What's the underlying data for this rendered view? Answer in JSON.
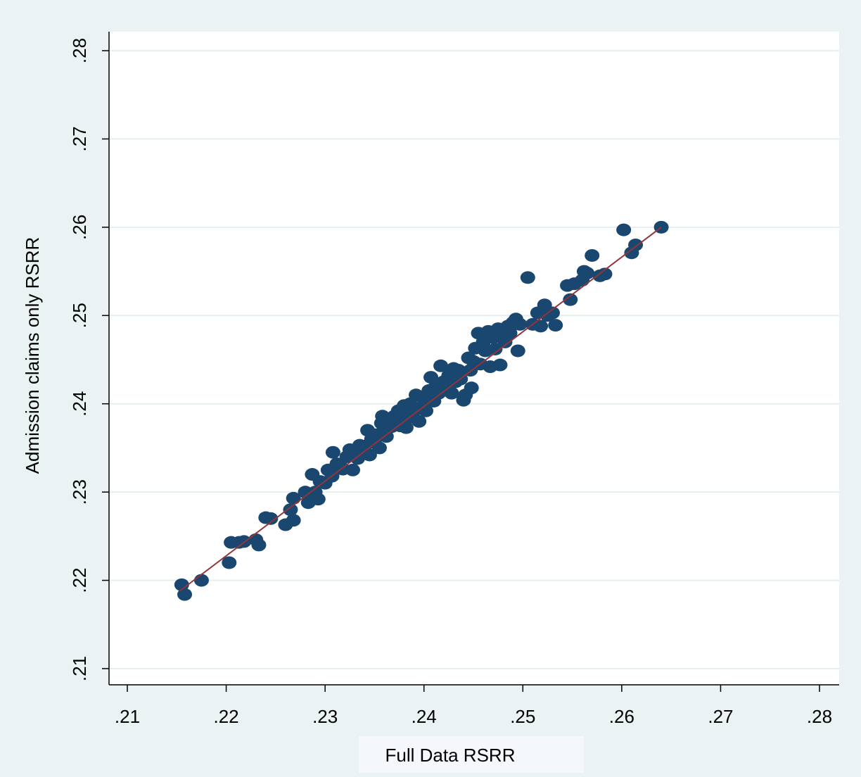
{
  "chart_data": {
    "type": "scatter",
    "title": "",
    "xlabel": "Full Data RSRR",
    "ylabel": "Admission claims only RSRR",
    "xlim": [
      0.21,
      0.28
    ],
    "ylim": [
      0.21,
      0.28
    ],
    "x_ticks": [
      ".21",
      ".22",
      ".23",
      ".24",
      ".25",
      ".26",
      ".27",
      ".28"
    ],
    "y_ticks": [
      ".21",
      ".22",
      ".23",
      ".24",
      ".25",
      ".26",
      ".27",
      ".28"
    ],
    "grid": "horizontal",
    "legend": "none",
    "colors": {
      "background": "#eaf2f3",
      "plot_background": "#ffffff",
      "gridline": "#e5eef0",
      "marker": "#1a476f",
      "fit_line": "#90353b",
      "axis_title_box": "#f4f8fc"
    },
    "series": [
      {
        "kind": "points",
        "points": [
          [
            0.2155,
            0.2195
          ],
          [
            0.2158,
            0.2184
          ],
          [
            0.2175,
            0.22
          ],
          [
            0.2203,
            0.222
          ],
          [
            0.2205,
            0.2243
          ],
          [
            0.2213,
            0.2243
          ],
          [
            0.2218,
            0.2244
          ],
          [
            0.223,
            0.2246
          ],
          [
            0.2233,
            0.224
          ],
          [
            0.224,
            0.2271
          ],
          [
            0.2245,
            0.227
          ],
          [
            0.226,
            0.2263
          ],
          [
            0.2265,
            0.228
          ],
          [
            0.2268,
            0.2293
          ],
          [
            0.2268,
            0.2268
          ],
          [
            0.228,
            0.23
          ],
          [
            0.2283,
            0.2288
          ],
          [
            0.2287,
            0.232
          ],
          [
            0.229,
            0.23
          ],
          [
            0.2293,
            0.2292
          ],
          [
            0.2295,
            0.2312
          ],
          [
            0.23,
            0.231
          ],
          [
            0.2303,
            0.2325
          ],
          [
            0.2307,
            0.2318
          ],
          [
            0.2308,
            0.2345
          ],
          [
            0.2312,
            0.2332
          ],
          [
            0.2315,
            0.233
          ],
          [
            0.2318,
            0.2326
          ],
          [
            0.2322,
            0.234
          ],
          [
            0.2325,
            0.2348
          ],
          [
            0.2328,
            0.2325
          ],
          [
            0.233,
            0.2342
          ],
          [
            0.2333,
            0.2338
          ],
          [
            0.2335,
            0.2353
          ],
          [
            0.2338,
            0.2345
          ],
          [
            0.234,
            0.2352
          ],
          [
            0.2343,
            0.237
          ],
          [
            0.2345,
            0.2342
          ],
          [
            0.2347,
            0.236
          ],
          [
            0.235,
            0.2356
          ],
          [
            0.2352,
            0.2365
          ],
          [
            0.2355,
            0.235
          ],
          [
            0.2357,
            0.2378
          ],
          [
            0.2358,
            0.2386
          ],
          [
            0.236,
            0.237
          ],
          [
            0.2362,
            0.2363
          ],
          [
            0.2365,
            0.238
          ],
          [
            0.2367,
            0.2374
          ],
          [
            0.237,
            0.2386
          ],
          [
            0.2372,
            0.2377
          ],
          [
            0.2374,
            0.2392
          ],
          [
            0.2376,
            0.2375
          ],
          [
            0.2378,
            0.2384
          ],
          [
            0.238,
            0.2398
          ],
          [
            0.2382,
            0.2373
          ],
          [
            0.2384,
            0.239
          ],
          [
            0.2386,
            0.24
          ],
          [
            0.2388,
            0.2385
          ],
          [
            0.239,
            0.2392
          ],
          [
            0.2392,
            0.241
          ],
          [
            0.2395,
            0.238
          ],
          [
            0.2397,
            0.2395
          ],
          [
            0.24,
            0.2405
          ],
          [
            0.2402,
            0.2392
          ],
          [
            0.2405,
            0.2415
          ],
          [
            0.2407,
            0.243
          ],
          [
            0.241,
            0.2403
          ],
          [
            0.2412,
            0.242
          ],
          [
            0.2415,
            0.2412
          ],
          [
            0.2417,
            0.2443
          ],
          [
            0.242,
            0.2425
          ],
          [
            0.2422,
            0.2418
          ],
          [
            0.2425,
            0.2432
          ],
          [
            0.2428,
            0.2412
          ],
          [
            0.243,
            0.244
          ],
          [
            0.2432,
            0.2425
          ],
          [
            0.2435,
            0.2438
          ],
          [
            0.2437,
            0.2428
          ],
          [
            0.244,
            0.2404
          ],
          [
            0.2442,
            0.241
          ],
          [
            0.2445,
            0.2452
          ],
          [
            0.2447,
            0.2438
          ],
          [
            0.2448,
            0.2418
          ],
          [
            0.245,
            0.2448
          ],
          [
            0.2452,
            0.2463
          ],
          [
            0.2455,
            0.248
          ],
          [
            0.2457,
            0.2445
          ],
          [
            0.246,
            0.247
          ],
          [
            0.2462,
            0.246
          ],
          [
            0.2465,
            0.2482
          ],
          [
            0.2467,
            0.2442
          ],
          [
            0.247,
            0.2475
          ],
          [
            0.2472,
            0.2462
          ],
          [
            0.2475,
            0.2485
          ],
          [
            0.2477,
            0.2444
          ],
          [
            0.248,
            0.2478
          ],
          [
            0.2482,
            0.247
          ],
          [
            0.2485,
            0.2488
          ],
          [
            0.2487,
            0.248
          ],
          [
            0.249,
            0.2492
          ],
          [
            0.2493,
            0.2496
          ],
          [
            0.2495,
            0.246
          ],
          [
            0.2497,
            0.249
          ],
          [
            0.2505,
            0.2543
          ],
          [
            0.251,
            0.249
          ],
          [
            0.2515,
            0.2503
          ],
          [
            0.2518,
            0.2488
          ],
          [
            0.2522,
            0.2512
          ],
          [
            0.2525,
            0.25
          ],
          [
            0.253,
            0.2503
          ],
          [
            0.2533,
            0.2489
          ],
          [
            0.2545,
            0.2534
          ],
          [
            0.2548,
            0.2518
          ],
          [
            0.2552,
            0.2536
          ],
          [
            0.256,
            0.254
          ],
          [
            0.2562,
            0.255
          ],
          [
            0.2565,
            0.2548
          ],
          [
            0.257,
            0.2568
          ],
          [
            0.2578,
            0.2545
          ],
          [
            0.2583,
            0.2547
          ],
          [
            0.2602,
            0.2597
          ],
          [
            0.261,
            0.2571
          ],
          [
            0.2614,
            0.258
          ],
          [
            0.264,
            0.26
          ]
        ]
      },
      {
        "kind": "fit_line",
        "x": [
          0.2153,
          0.264
        ],
        "y": [
          0.2188,
          0.26
        ]
      }
    ]
  }
}
